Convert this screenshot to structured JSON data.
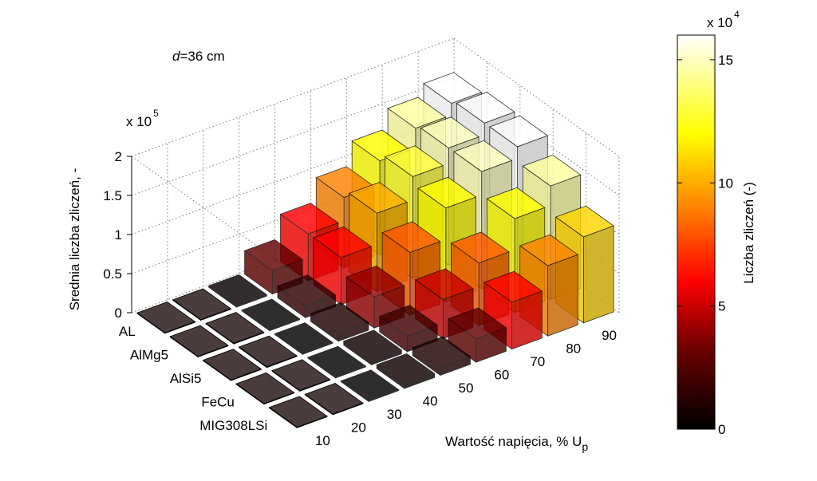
{
  "chart_data": {
    "type": "bar3d",
    "annotation": "=36 cm",
    "annotation_var": "d",
    "zlabel": "Srednia liczba zliczeń, -",
    "xlabel": "Wartość napięcia, % U",
    "xlabel_sub": "p",
    "z_multiplier": "x 10",
    "z_multiplier_exp": "5",
    "z_ticks": [
      "0",
      "0.5",
      "1",
      "1.5",
      "2"
    ],
    "zlim": [
      0,
      200000
    ],
    "voltages": [
      "10",
      "20",
      "30",
      "40",
      "50",
      "60",
      "70",
      "80",
      "90"
    ],
    "materials": [
      "AL",
      "AlMg5",
      "AlSi5",
      "FeCu",
      "MIG308LSi"
    ],
    "series": [
      {
        "name": "AL",
        "values": [
          0,
          0,
          2000,
          30000,
          60000,
          90000,
          120000,
          145000,
          160000
        ]
      },
      {
        "name": "AlMg5",
        "values": [
          0,
          0,
          1000,
          15000,
          60000,
          100000,
          130000,
          150000,
          165000
        ]
      },
      {
        "name": "AlSi5",
        "values": [
          0,
          0,
          1000,
          10000,
          40000,
          80000,
          120000,
          150000,
          165000
        ]
      },
      {
        "name": "FeCu",
        "values": [
          0,
          0,
          1000,
          5000,
          20000,
          50000,
          80000,
          120000,
          145000
        ]
      },
      {
        "name": "MIG308LSi",
        "values": [
          0,
          0,
          1000,
          5000,
          10000,
          30000,
          60000,
          90000,
          110000
        ]
      }
    ],
    "colorbar": {
      "label": "Liczba zliczeń (-)",
      "multiplier": "x 10",
      "multiplier_exp": "4",
      "ticks": [
        "0",
        "5",
        "10",
        "15"
      ],
      "range": [
        0,
        160000
      ],
      "colormap": "hot"
    },
    "grid": true
  }
}
